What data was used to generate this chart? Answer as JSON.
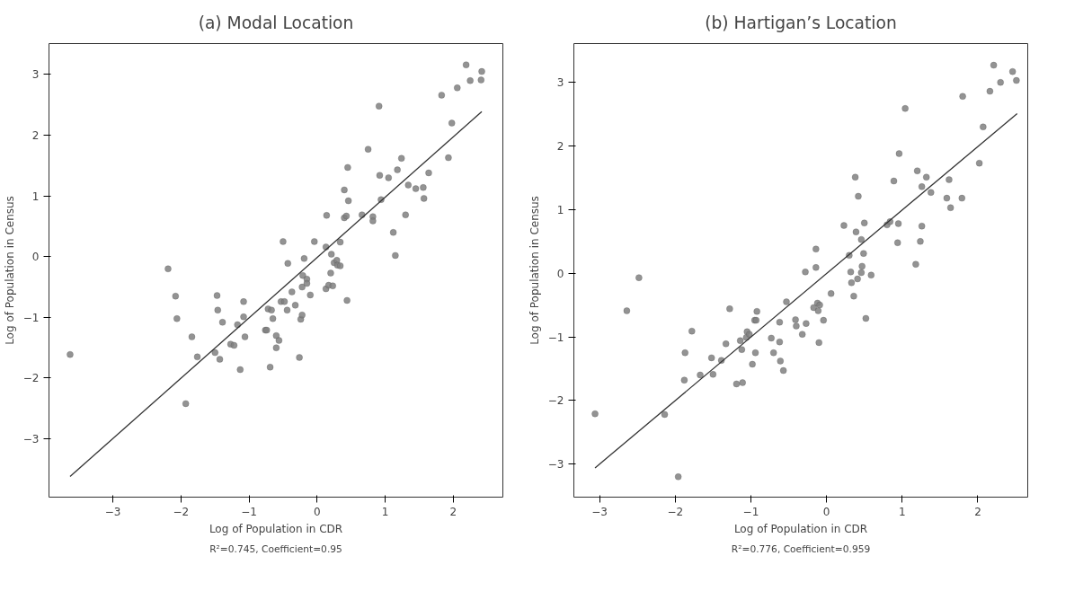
{
  "chart_data": [
    {
      "type": "scatter",
      "title": "(a) Modal Location",
      "xlabel": "Log of Population in CDR",
      "ylabel": "Log of Population in Census",
      "annotations": [
        "R²=0.745, Coefficient=0.95"
      ],
      "xlim": [
        -3.94,
        2.73
      ],
      "ylim": [
        -3.96,
        3.51
      ],
      "xticks": [
        {
          "value": -3,
          "label": "−3"
        },
        {
          "value": -2,
          "label": "−2"
        },
        {
          "value": -1,
          "label": "−1"
        },
        0,
        1,
        2
      ],
      "yticks": [
        {
          "value": -3,
          "label": "−3"
        },
        {
          "value": -2,
          "label": "−2"
        },
        {
          "value": -1,
          "label": "−1"
        },
        0,
        1,
        2,
        3
      ],
      "grid": false,
      "series": [
        {
          "marker": "circle",
          "color": "#808080",
          "x": [
            -3.63,
            -2.19,
            -2.08,
            -2.06,
            -1.84,
            -1.93,
            -1.76,
            -1.5,
            -1.43,
            -1.47,
            -1.46,
            -1.39,
            -1.27,
            -1.22,
            -1.17,
            -1.08,
            -1.08,
            -1.06,
            -1.13,
            -0.76,
            -0.74,
            -0.72,
            -0.67,
            -0.65,
            -0.69,
            -0.6,
            -0.56,
            -0.6,
            -0.5,
            -0.53,
            -0.48,
            -0.43,
            -0.44,
            -0.37,
            -0.32,
            -0.26,
            -0.24,
            -0.22,
            -0.21,
            -0.22,
            -0.19,
            -0.15,
            -0.15,
            -0.1,
            -0.04,
            0.13,
            0.14,
            0.13,
            0.17,
            0.23,
            0.2,
            0.21,
            0.25,
            0.29,
            0.3,
            0.34,
            0.34,
            0.44,
            0.4,
            0.4,
            0.43,
            0.45,
            0.46,
            0.66,
            0.75,
            0.82,
            0.82,
            0.91,
            0.92,
            0.94,
            1.05,
            1.12,
            1.15,
            1.18,
            1.24,
            1.3,
            1.34,
            1.45,
            1.56,
            1.57,
            1.64,
            1.83,
            1.93,
            1.98,
            2.06,
            2.19,
            2.25,
            2.41,
            2.42
          ],
          "values": [
            -1.61,
            -0.2,
            -0.65,
            -1.02,
            -1.32,
            -2.42,
            -1.65,
            -1.58,
            -1.69,
            -0.64,
            -0.88,
            -1.08,
            -1.44,
            -1.46,
            -1.12,
            -0.74,
            -0.99,
            -1.32,
            -1.86,
            -1.21,
            -1.21,
            -0.86,
            -0.88,
            -1.02,
            -1.82,
            -1.3,
            -1.38,
            -1.5,
            0.25,
            -0.74,
            -0.74,
            -0.11,
            -0.88,
            -0.58,
            -0.8,
            -1.66,
            -1.03,
            -0.96,
            -0.31,
            -0.5,
            -0.03,
            -0.37,
            -0.44,
            -0.63,
            0.25,
            0.16,
            0.68,
            -0.53,
            -0.47,
            -0.48,
            -0.27,
            0.04,
            -0.1,
            -0.06,
            -0.14,
            -0.15,
            0.24,
            -0.72,
            1.1,
            0.64,
            0.67,
            1.47,
            0.92,
            0.69,
            1.77,
            0.66,
            0.59,
            2.48,
            1.34,
            0.94,
            1.3,
            0.4,
            0.02,
            1.43,
            1.62,
            0.69,
            1.18,
            1.12,
            1.14,
            0.96,
            1.38,
            2.66,
            1.63,
            2.2,
            2.78,
            3.16,
            2.9,
            2.91,
            3.05
          ]
        },
        {
          "type": "line",
          "color": "#333333",
          "x": [
            -3.63,
            2.42
          ],
          "values": [
            -3.62,
            2.39
          ]
        }
      ]
    },
    {
      "type": "scatter",
      "title": "(b) Hartigan’s Location",
      "xlabel": "Log of Population in CDR",
      "ylabel": "Log of Population in Census",
      "annotations": [
        "R²=0.776, Coefficient=0.959"
      ],
      "xlim": [
        -3.34,
        2.66
      ],
      "ylim": [
        -3.52,
        3.61
      ],
      "xticks": [
        {
          "value": -3,
          "label": "−3"
        },
        {
          "value": -2,
          "label": "−2"
        },
        {
          "value": -1,
          "label": "−1"
        },
        0,
        1,
        2
      ],
      "yticks": [
        {
          "value": -3,
          "label": "−3"
        },
        {
          "value": -2,
          "label": "−2"
        },
        {
          "value": -1,
          "label": "−1"
        },
        0,
        1,
        2,
        3
      ],
      "grid": false,
      "series": [
        {
          "marker": "circle",
          "color": "#808080",
          "x": [
            -3.06,
            -2.64,
            -2.48,
            -2.14,
            -1.96,
            -1.88,
            -1.87,
            -1.78,
            -1.67,
            -1.52,
            -1.5,
            -1.39,
            -1.33,
            -1.28,
            -1.19,
            -1.11,
            -1.14,
            -1.12,
            -1.05,
            -1.06,
            -1.02,
            -0.98,
            -0.95,
            -0.93,
            -0.92,
            -0.94,
            -0.73,
            -0.7,
            -0.62,
            -0.62,
            -0.61,
            -0.57,
            -0.53,
            -0.41,
            -0.4,
            -0.32,
            -0.28,
            -0.27,
            -0.17,
            -0.14,
            -0.14,
            -0.12,
            -0.09,
            -0.11,
            -0.1,
            -0.04,
            0.06,
            0.23,
            0.3,
            0.32,
            0.33,
            0.36,
            0.38,
            0.39,
            0.42,
            0.41,
            0.46,
            0.46,
            0.47,
            0.49,
            0.5,
            0.52,
            0.59,
            0.8,
            0.84,
            0.89,
            0.95,
            0.94,
            0.96,
            1.04,
            1.18,
            1.2,
            1.24,
            1.26,
            1.26,
            1.32,
            1.38,
            1.59,
            1.62,
            1.64,
            1.79,
            1.8,
            2.02,
            2.07,
            2.16,
            2.21,
            2.3,
            2.46,
            2.51
          ],
          "values": [
            -2.21,
            -0.59,
            -0.07,
            -2.22,
            -3.2,
            -1.68,
            -1.25,
            -0.91,
            -1.6,
            -1.33,
            -1.59,
            -1.37,
            -1.11,
            -0.56,
            -1.74,
            -1.72,
            -1.06,
            -1.2,
            -0.92,
            -1.01,
            -0.96,
            -1.43,
            -0.74,
            -0.74,
            -0.6,
            -1.25,
            -1.02,
            -1.25,
            -0.77,
            -1.08,
            -1.38,
            -1.53,
            -0.45,
            -0.73,
            -0.83,
            -0.96,
            0.02,
            -0.79,
            -0.54,
            0.38,
            0.09,
            -0.47,
            -0.5,
            -0.59,
            -1.09,
            -0.74,
            -0.32,
            0.75,
            0.28,
            0.02,
            -0.15,
            -0.36,
            1.51,
            0.65,
            1.21,
            -0.09,
            0.01,
            0.53,
            0.11,
            0.31,
            0.79,
            -0.71,
            -0.03,
            0.76,
            0.81,
            1.45,
            0.78,
            0.48,
            1.88,
            2.59,
            0.14,
            1.61,
            0.5,
            0.74,
            1.36,
            1.51,
            1.27,
            1.18,
            1.47,
            1.03,
            1.18,
            2.78,
            1.73,
            2.3,
            2.86,
            3.27,
            3.0,
            3.17,
            3.03
          ]
        },
        {
          "type": "line",
          "color": "#333333",
          "x": [
            -3.06,
            2.52
          ],
          "values": [
            -3.06,
            2.51
          ]
        }
      ]
    }
  ]
}
